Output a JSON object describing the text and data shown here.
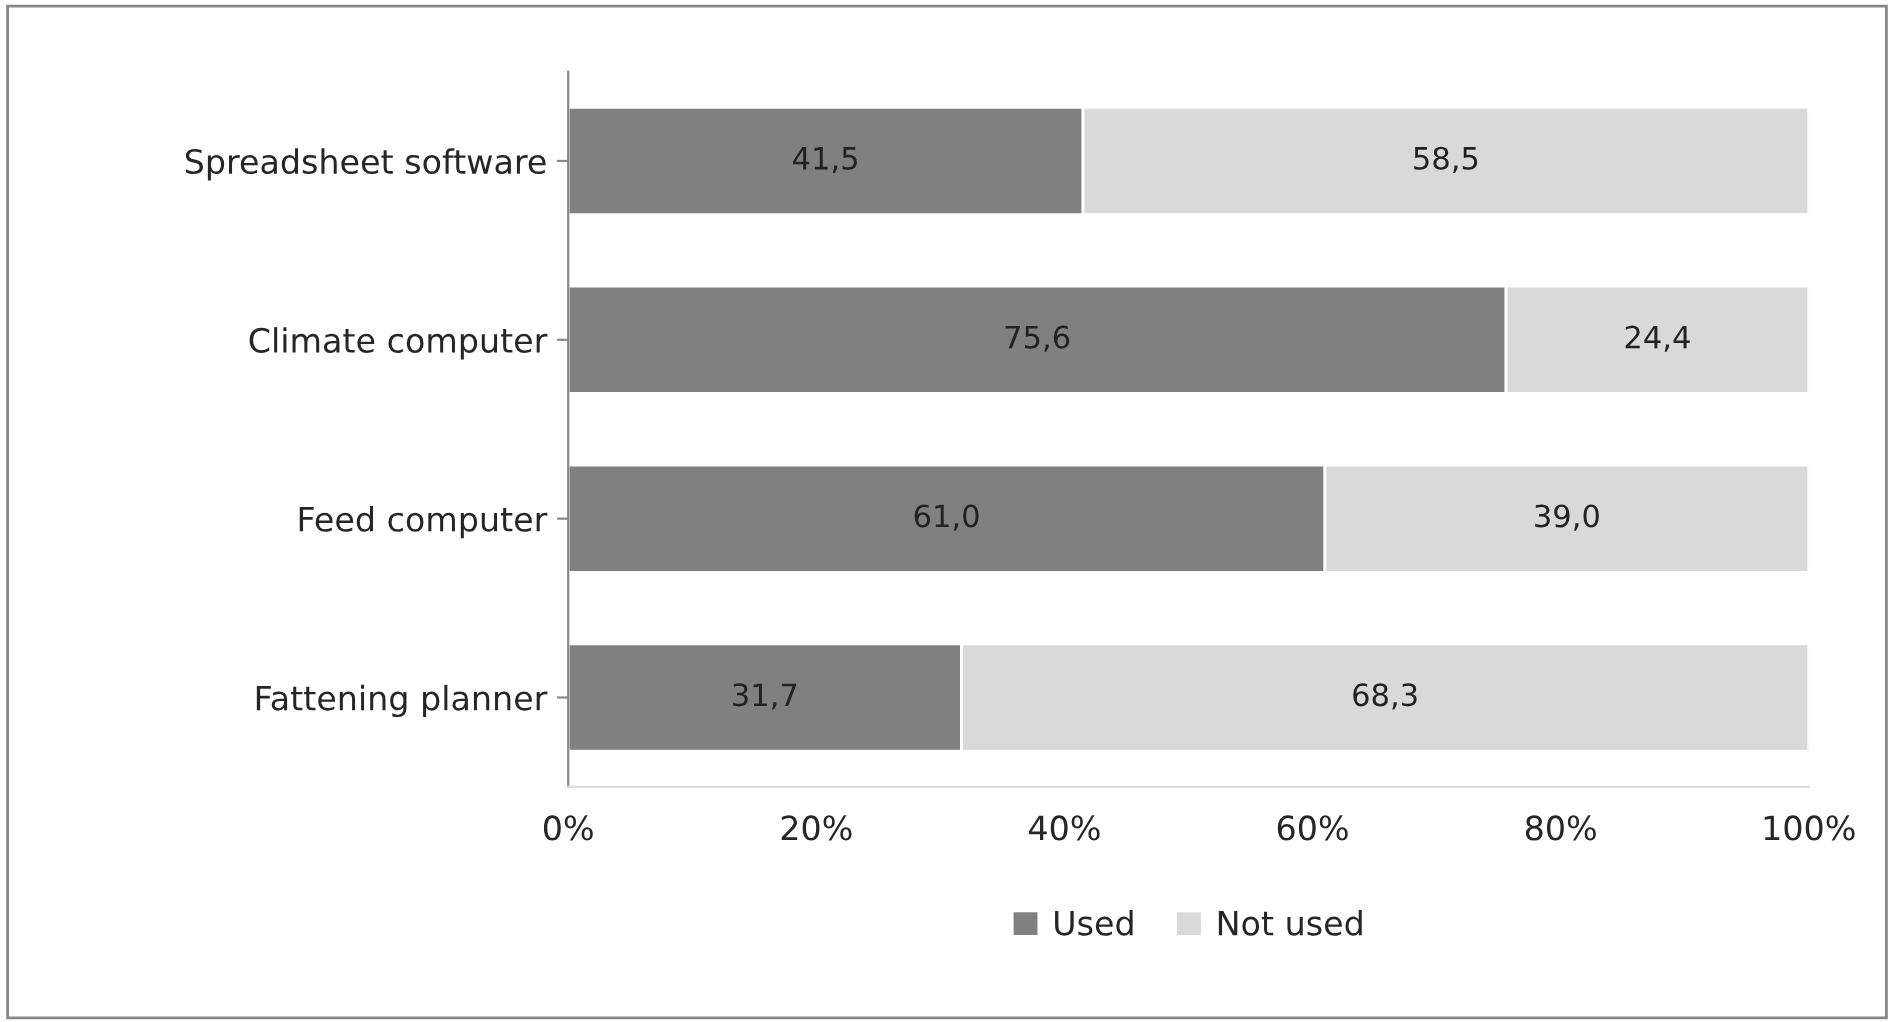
{
  "chart_data": {
    "type": "bar",
    "orientation": "horizontal",
    "stacked": true,
    "categories": [
      "Spreadsheet software",
      "Climate computer",
      "Feed computer",
      "Fattening planner"
    ],
    "series": [
      {
        "name": "Used",
        "color": "#808080",
        "values": [
          41.5,
          75.6,
          61.0,
          31.7
        ],
        "value_labels": [
          "41,5",
          "75,6",
          "61,0",
          "31,7"
        ]
      },
      {
        "name": "Not used",
        "color": "#d9d9d9",
        "values": [
          58.5,
          24.4,
          39.0,
          68.3
        ],
        "value_labels": [
          "58,5",
          "24,4",
          "39,0",
          "68,3"
        ]
      }
    ],
    "xlim": [
      0,
      100
    ],
    "xticks": [
      {
        "value": 0,
        "label": "0%"
      },
      {
        "value": 20,
        "label": "20%"
      },
      {
        "value": 40,
        "label": "40%"
      },
      {
        "value": 60,
        "label": "60%"
      },
      {
        "value": 80,
        "label": "80%"
      },
      {
        "value": 100,
        "label": "100%"
      }
    ],
    "legend": "bottom",
    "grid": false
  }
}
